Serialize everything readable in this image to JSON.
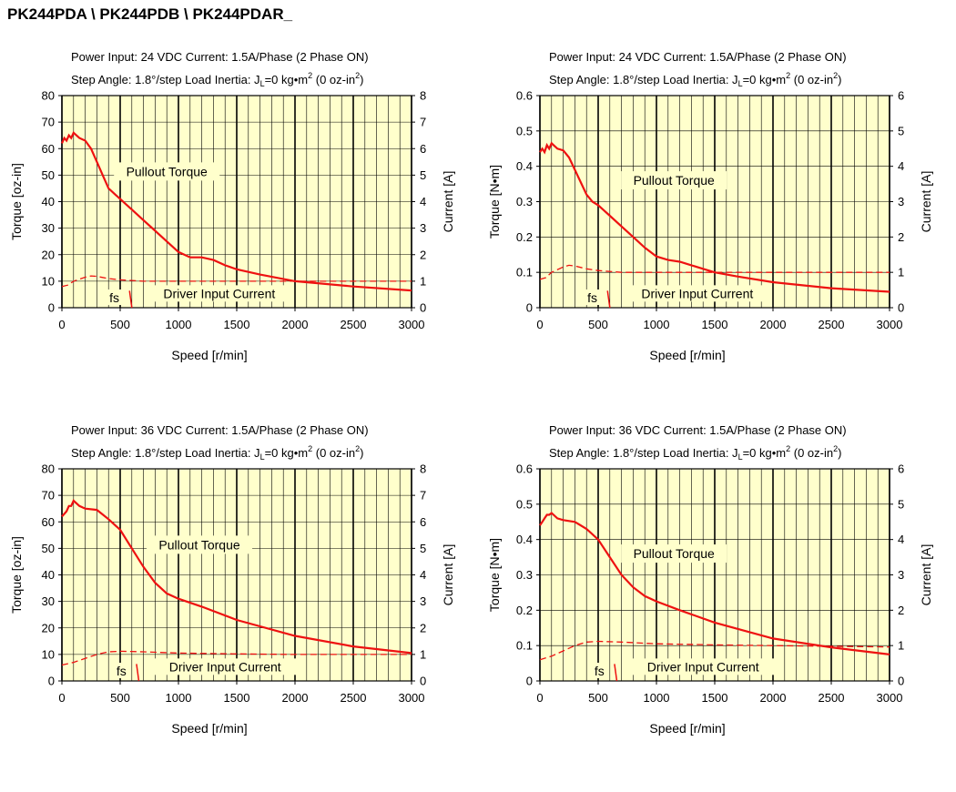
{
  "page": {
    "title": "PK244PDA \\ PK244PDB \\ PK244PDAR_"
  },
  "colors": {
    "plot_background": "#FFFFCC",
    "torque_curve": "#EE1111",
    "current_curve": "#EE1111",
    "grid": "#000000"
  },
  "chart_data": [
    {
      "type": "line",
      "header_line1": "Power Input: 24 VDC  Current: 1.5A/Phase (2 Phase ON)",
      "header_line2": "Step Angle: 1.8°/step  Load Inertia: J",
      "header_sub_L": "L",
      "header_mid": "=0 kg•m",
      "header_sup_2a": "2",
      "header_mid2": " (0 oz-in",
      "header_sup_2b": "2",
      "header_end": ")",
      "xlabel": "Speed [r/min]",
      "ylabel_left": "Torque [oz-in]",
      "ylabel_right": "Current [A]",
      "xlim": [
        0,
        3000
      ],
      "ylim_left": [
        0,
        80
      ],
      "ylim_right": [
        0,
        8
      ],
      "x_ticks": [
        0,
        500,
        1000,
        1500,
        2000,
        2500,
        3000
      ],
      "y_ticks_left": [
        0,
        10,
        20,
        30,
        40,
        50,
        60,
        70,
        80
      ],
      "y_ticks_right": [
        0,
        1,
        2,
        3,
        4,
        5,
        6,
        7,
        8
      ],
      "grid": true,
      "annotations": {
        "pullout": "Pullout Torque",
        "current": "Driver Input Current",
        "fs": "fs"
      },
      "series": [
        {
          "name": "Pullout Torque",
          "style": "solid",
          "x": [
            0,
            20,
            40,
            60,
            80,
            100,
            150,
            200,
            250,
            300,
            350,
            400,
            450,
            500,
            550,
            600,
            700,
            800,
            900,
            1000,
            1100,
            1200,
            1300,
            1400,
            1500,
            1700,
            2000,
            2500,
            3000
          ],
          "y": [
            62,
            64,
            63,
            65,
            64,
            66,
            64,
            63,
            60,
            55,
            50,
            45,
            43,
            41,
            39,
            37,
            33,
            29,
            25,
            21,
            19,
            19,
            18,
            16,
            14.5,
            12.5,
            10,
            8,
            6.5
          ]
        },
        {
          "name": "Driver Input Current",
          "style": "dashed",
          "x": [
            0,
            50,
            100,
            200,
            250,
            300,
            400,
            500,
            700,
            1000,
            1500,
            2000,
            2500,
            3000
          ],
          "y": [
            0.8,
            0.85,
            1.0,
            1.15,
            1.2,
            1.18,
            1.1,
            1.05,
            1.0,
            1.0,
            1.0,
            1.0,
            1.0,
            1.0
          ]
        }
      ]
    },
    {
      "type": "line",
      "header_line1": "Power Input: 24 VDC  Current: 1.5A/Phase (2 Phase ON)",
      "header_line2": "Step Angle: 1.8°/step  Load Inertia: J",
      "header_sub_L": "L",
      "header_mid": "=0 kg•m",
      "header_sup_2a": "2",
      "header_mid2": " (0 oz-in",
      "header_sup_2b": "2",
      "header_end": ")",
      "xlabel": "Speed [r/min]",
      "ylabel_left": "Torque [N•m]",
      "ylabel_right": "Current [A]",
      "xlim": [
        0,
        3000
      ],
      "ylim_left": [
        0,
        0.6
      ],
      "ylim_right": [
        0,
        6
      ],
      "x_ticks": [
        0,
        500,
        1000,
        1500,
        2000,
        2500,
        3000
      ],
      "y_ticks_left": [
        0,
        0.1,
        0.2,
        0.3,
        0.4,
        0.5,
        0.6
      ],
      "y_ticks_right": [
        0,
        1,
        2,
        3,
        4,
        5,
        6
      ],
      "grid": true,
      "annotations": {
        "pullout": "Pullout Torque",
        "current": "Driver Input Current",
        "fs": "fs"
      },
      "series": [
        {
          "name": "Pullout Torque",
          "style": "solid",
          "x": [
            0,
            20,
            40,
            60,
            80,
            100,
            150,
            200,
            250,
            300,
            350,
            400,
            450,
            500,
            550,
            600,
            700,
            800,
            900,
            1000,
            1100,
            1200,
            1300,
            1400,
            1500,
            1700,
            2000,
            2500,
            3000
          ],
          "y": [
            0.44,
            0.45,
            0.44,
            0.46,
            0.45,
            0.465,
            0.45,
            0.445,
            0.425,
            0.39,
            0.355,
            0.32,
            0.3,
            0.29,
            0.275,
            0.26,
            0.23,
            0.2,
            0.17,
            0.145,
            0.135,
            0.13,
            0.12,
            0.11,
            0.1,
            0.088,
            0.072,
            0.055,
            0.045
          ]
        },
        {
          "name": "Driver Input Current",
          "style": "dashed",
          "x": [
            0,
            50,
            100,
            200,
            250,
            300,
            400,
            500,
            700,
            1000,
            1500,
            2000,
            2500,
            3000
          ],
          "y": [
            0.8,
            0.85,
            1.0,
            1.15,
            1.2,
            1.18,
            1.1,
            1.05,
            1.0,
            1.0,
            1.0,
            1.0,
            1.0,
            1.0
          ]
        }
      ]
    },
    {
      "type": "line",
      "header_line1": "Power Input: 36 VDC  Current: 1.5A/Phase (2 Phase ON)",
      "header_line2": "Step Angle: 1.8°/step  Load Inertia: J",
      "header_sub_L": "L",
      "header_mid": "=0 kg•m",
      "header_sup_2a": "2",
      "header_mid2": " (0 oz-in",
      "header_sup_2b": "2",
      "header_end": ")",
      "xlabel": "Speed [r/min]",
      "ylabel_left": "Torque [oz-in]",
      "ylabel_right": "Current [A]",
      "xlim": [
        0,
        3000
      ],
      "ylim_left": [
        0,
        80
      ],
      "ylim_right": [
        0,
        8
      ],
      "x_ticks": [
        0,
        500,
        1000,
        1500,
        2000,
        2500,
        3000
      ],
      "y_ticks_left": [
        0,
        10,
        20,
        30,
        40,
        50,
        60,
        70,
        80
      ],
      "y_ticks_right": [
        0,
        1,
        2,
        3,
        4,
        5,
        6,
        7,
        8
      ],
      "grid": true,
      "annotations": {
        "pullout": "Pullout Torque",
        "current": "Driver Input Current",
        "fs": "fs"
      },
      "series": [
        {
          "name": "Pullout Torque",
          "style": "solid",
          "x": [
            0,
            20,
            40,
            60,
            80,
            100,
            150,
            200,
            300,
            400,
            500,
            600,
            700,
            800,
            900,
            1000,
            1200,
            1500,
            2000,
            2500,
            3000
          ],
          "y": [
            62,
            63,
            64,
            66,
            66,
            68,
            66,
            65,
            64.5,
            61,
            57,
            50,
            43,
            37,
            33,
            31,
            28,
            23,
            17,
            13,
            10.5
          ]
        },
        {
          "name": "Driver Input Current",
          "style": "dashed",
          "x": [
            0,
            100,
            200,
            300,
            400,
            500,
            700,
            1000,
            1500,
            2000,
            2500,
            3000
          ],
          "y": [
            0.6,
            0.7,
            0.85,
            1.0,
            1.1,
            1.12,
            1.1,
            1.05,
            1.02,
            1.0,
            1.0,
            1.0
          ]
        }
      ]
    },
    {
      "type": "line",
      "header_line1": "Power Input: 36 VDC  Current: 1.5A/Phase (2 Phase ON)",
      "header_line2": "Step Angle: 1.8°/step  Load Inertia: J",
      "header_sub_L": "L",
      "header_mid": "=0 kg•m",
      "header_sup_2a": "2",
      "header_mid2": " (0 oz-in",
      "header_sup_2b": "2",
      "header_end": ")",
      "xlabel": "Speed [r/min]",
      "ylabel_left": "Torque [N•m]",
      "ylabel_right": "Current [A]",
      "xlim": [
        0,
        3000
      ],
      "ylim_left": [
        0,
        0.6
      ],
      "ylim_right": [
        0,
        6
      ],
      "x_ticks": [
        0,
        500,
        1000,
        1500,
        2000,
        2500,
        3000
      ],
      "y_ticks_left": [
        0,
        0.1,
        0.2,
        0.3,
        0.4,
        0.5,
        0.6
      ],
      "y_ticks_right": [
        0,
        1,
        2,
        3,
        4,
        5,
        6
      ],
      "grid": true,
      "annotations": {
        "pullout": "Pullout Torque",
        "current": "Driver Input Current",
        "fs": "fs"
      },
      "series": [
        {
          "name": "Pullout Torque",
          "style": "solid",
          "x": [
            0,
            20,
            40,
            60,
            80,
            100,
            150,
            200,
            300,
            400,
            500,
            600,
            700,
            800,
            900,
            1000,
            1200,
            1500,
            2000,
            2500,
            3000
          ],
          "y": [
            0.44,
            0.45,
            0.46,
            0.47,
            0.47,
            0.475,
            0.46,
            0.455,
            0.45,
            0.43,
            0.4,
            0.35,
            0.3,
            0.265,
            0.24,
            0.225,
            0.2,
            0.165,
            0.12,
            0.095,
            0.075
          ]
        },
        {
          "name": "Driver Input Current",
          "style": "dashed",
          "x": [
            0,
            100,
            200,
            300,
            400,
            500,
            700,
            1000,
            1500,
            2000,
            2500,
            3000
          ],
          "y": [
            0.6,
            0.7,
            0.85,
            1.0,
            1.1,
            1.12,
            1.1,
            1.05,
            1.02,
            1.0,
            0.98,
            0.96
          ]
        }
      ]
    }
  ]
}
